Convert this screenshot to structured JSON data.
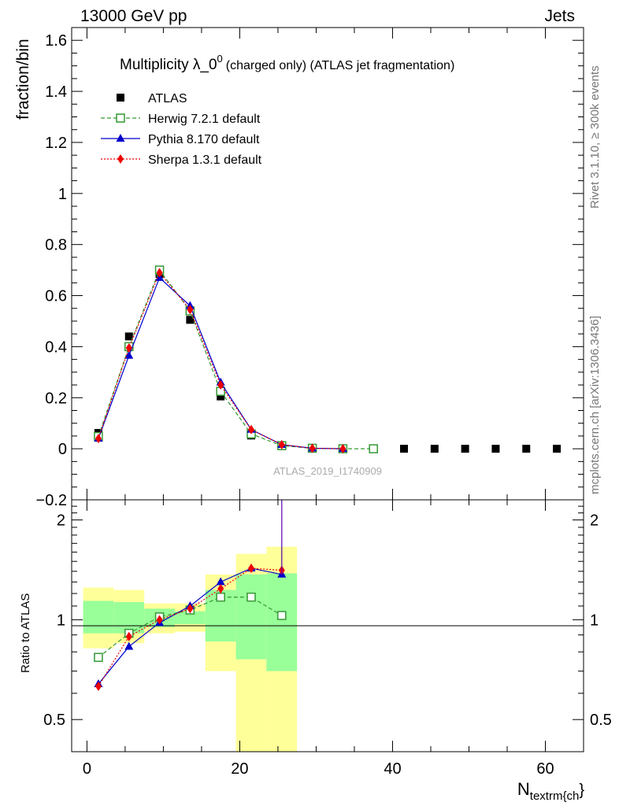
{
  "header": {
    "left": "13000 GeV pp",
    "right": "Jets"
  },
  "side_labels": {
    "rivet": "Rivet 3.1.10, ≥ 300k events",
    "mcplots": "mcplots.cern.ch [arXiv:1306.3436]"
  },
  "chart_data": [
    {
      "type": "line",
      "title": "Multiplicity λ_0^0 (charged only) (ATLAS jet fragmentation)",
      "title_main": "Multiplicity λ_0",
      "title_sup": "0",
      "title_rest": "(charged only) (ATLAS jet fragmentation)",
      "watermark": "ATLAS_2019_I1740909",
      "ylabel": "fraction/bin",
      "xlabel_main": "N",
      "xlabel_sub": "textrm{ch",
      "xlabel_close": "}",
      "xlim": [
        -2,
        65
      ],
      "ylim": [
        -0.2,
        1.65
      ],
      "yticks": [
        -0.2,
        0,
        0.2,
        0.4,
        0.6,
        0.8,
        1,
        1.2,
        1.4,
        1.6
      ],
      "ytick_labels": [
        "−0.2",
        "0",
        "0.2",
        "0.4",
        "0.6",
        "0.8",
        "1",
        "1.2",
        "1.4",
        "1.6"
      ],
      "xticks": [
        0,
        20,
        40,
        60
      ],
      "xtick_labels": [
        "0",
        "20",
        "40",
        "60"
      ],
      "legend_position": "top-left",
      "series": [
        {
          "name": "ATLAS",
          "color": "#000000",
          "marker": "square-filled",
          "x": [
            1.5,
            5.5,
            9.5,
            13.5,
            17.5,
            21.5,
            25.5,
            29.5,
            33.5,
            37.5,
            41.5,
            45.5,
            49.5,
            53.5,
            57.5,
            61.5
          ],
          "y": [
            0.062,
            0.44,
            0.685,
            0.505,
            0.205,
            0.052,
            0.011,
            0.002,
            0.0,
            0.0,
            0.0,
            0.0,
            0.0,
            0.0,
            0.0,
            0.0
          ]
        },
        {
          "name": "Herwig 7.2.1 default",
          "color": "#339933",
          "marker": "square-open",
          "dash": "dashed",
          "x": [
            1.5,
            5.5,
            9.5,
            13.5,
            17.5,
            21.5,
            25.5,
            29.5,
            33.5,
            37.5
          ],
          "y": [
            0.048,
            0.4,
            0.7,
            0.54,
            0.225,
            0.058,
            0.012,
            0.002,
            0.0,
            0.0
          ]
        },
        {
          "name": "Pythia 8.170 default",
          "color": "#0000cc",
          "marker": "triangle-filled",
          "dash": "solid",
          "x": [
            1.5,
            5.5,
            9.5,
            13.5,
            17.5,
            21.5,
            25.5,
            29.5,
            33.5
          ],
          "y": [
            0.04,
            0.365,
            0.67,
            0.56,
            0.26,
            0.075,
            0.016,
            0.002,
            0.0
          ]
        },
        {
          "name": "Sherpa 1.3.1 default",
          "color": "#ee0000",
          "marker": "diamond-filled",
          "dash": "dotted",
          "x": [
            1.5,
            5.5,
            9.5,
            13.5,
            17.5,
            21.5,
            25.5,
            29.5,
            33.5
          ],
          "y": [
            0.04,
            0.395,
            0.69,
            0.545,
            0.25,
            0.075,
            0.016,
            0.002,
            0.0
          ]
        }
      ]
    },
    {
      "type": "line",
      "ylabel": "Ratio to ATLAS",
      "ylim": [
        0.4,
        2.3
      ],
      "yscale": "log",
      "yticks": [
        0.5,
        1,
        2
      ],
      "ytick_labels": [
        "0.5",
        "1",
        "2"
      ],
      "reference_line": 1,
      "bands": {
        "edges": [
          -0.5,
          3.5,
          7.5,
          11.5,
          15.5,
          19.5,
          23.5,
          27.5
        ],
        "inner_lo": [
          0.91,
          0.91,
          0.95,
          0.97,
          0.86,
          0.76,
          0.7
        ],
        "inner_hi": [
          1.14,
          1.13,
          1.08,
          1.06,
          1.23,
          1.37,
          1.38
        ],
        "outer_lo": [
          0.82,
          0.85,
          0.91,
          0.92,
          0.7,
          0.38,
          0.35
        ],
        "outer_hi": [
          1.25,
          1.23,
          1.12,
          1.12,
          1.37,
          1.58,
          1.66
        ],
        "inner_color": "#99ff99",
        "outer_color": "#ffff99"
      },
      "series": [
        {
          "name": "Herwig 7.2.1 default",
          "x": [
            1.5,
            5.5,
            9.5,
            13.5,
            17.5,
            21.5,
            25.5
          ],
          "y": [
            0.77,
            0.91,
            1.02,
            1.07,
            1.17,
            1.17,
            1.03
          ]
        },
        {
          "name": "Pythia 8.170 default",
          "x": [
            1.5,
            5.5,
            9.5,
            13.5,
            17.5,
            21.5,
            25.5
          ],
          "y": [
            0.64,
            0.83,
            0.98,
            1.1,
            1.3,
            1.43,
            1.37
          ]
        },
        {
          "name": "Sherpa 1.3.1 default",
          "x": [
            1.5,
            5.5,
            9.5,
            13.5,
            17.5,
            21.5,
            25.5
          ],
          "y": [
            0.63,
            0.89,
            1.0,
            1.08,
            1.24,
            1.43,
            1.41
          ]
        }
      ]
    }
  ]
}
